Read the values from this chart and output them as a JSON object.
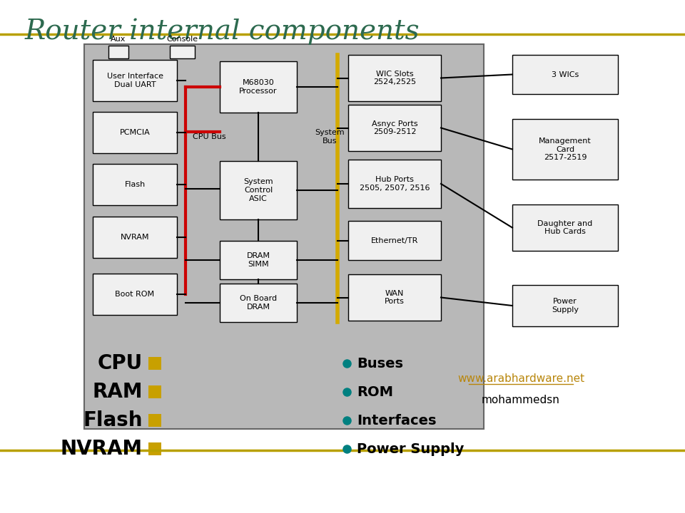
{
  "title": "Router internal components",
  "title_color": "#2d6a4f",
  "title_fontsize": 28,
  "bg_color": "#ffffff",
  "border_line": "#b8a000",
  "left_labels": [
    "User Interface\nDual UART",
    "PCMCIA",
    "Flash",
    "NVRAM",
    "Boot ROM"
  ],
  "center_top": "M68030\nProcessor",
  "center_mid": "System\nControl\nASIC",
  "center_bot1": "DRAM\nSIMM",
  "center_bot2": "On Board\nDRAM",
  "right_labels": [
    "WIC Slots\n2524,2525",
    "Asnyc Ports\n2509-2512",
    "Hub Ports\n2505, 2507, 2516",
    "Ethernet/TR",
    "WAN\nPorts"
  ],
  "far_right_labels": [
    "3 WICs",
    "Management\nCard\n2517-2519",
    "Daughter and\nHub Cards",
    "Power\nSupply"
  ],
  "cpu_bus_label": "CPU Bus",
  "system_bus_label": "System\nBus",
  "legend_left": [
    "CPU",
    "RAM",
    "Flash",
    "NVRAM"
  ],
  "legend_right": [
    "Buses",
    "ROM",
    "Interfaces",
    "Power Supply"
  ],
  "legend_square_color": "#c8a000",
  "legend_dot_color": "#008080",
  "url_text": "www.arabhardware.net",
  "url_color": "#b8860b",
  "author_text": "mohammedsn",
  "red_bus_color": "#cc0000",
  "yellow_bus_color": "#d4aa00"
}
